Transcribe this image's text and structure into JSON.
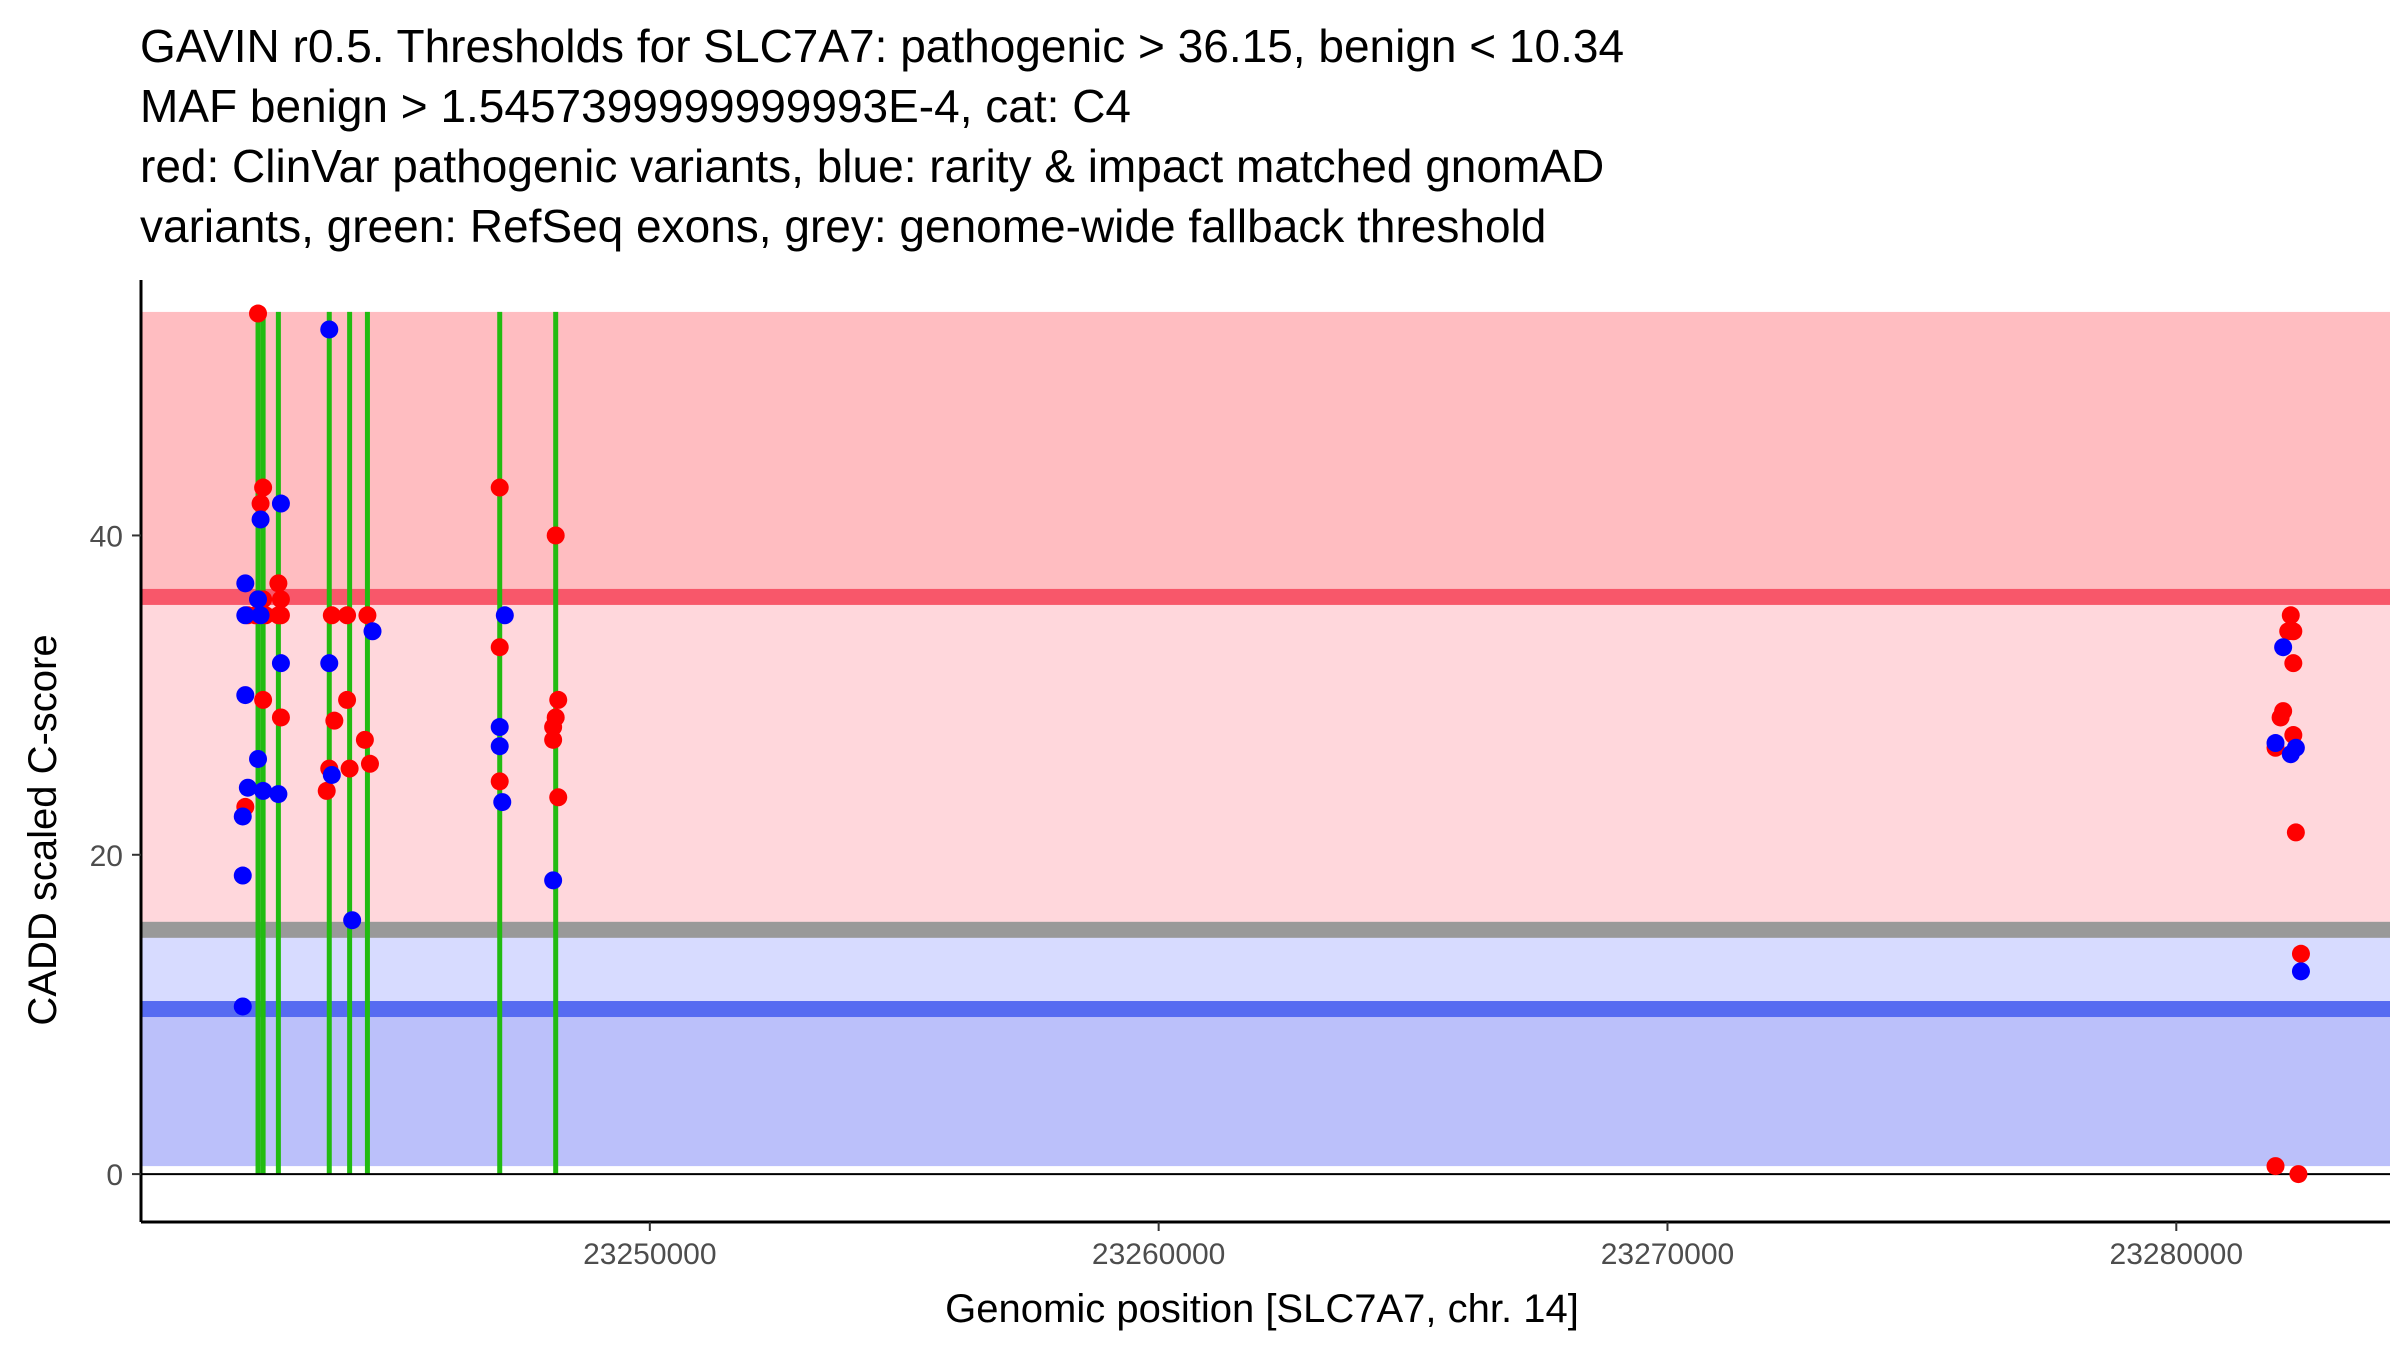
{
  "chart_data": {
    "type": "scatter",
    "title_lines": [
      "GAVIN r0.5. Thresholds for SLC7A7: pathogenic > 36.15, benign < 10.34",
      "MAF benign > 1.5457399999999993E-4, cat: C4",
      "red: ClinVar pathogenic variants, blue: rarity & impact matched gnomAD",
      "variants, green: RefSeq exons, grey: genome-wide fallback threshold"
    ],
    "xlabel": "Genomic position [SLC7A7, chr. 14]",
    "ylabel": "CADD scaled C-score",
    "xlim": [
      23240000,
      23284200
    ],
    "ylim": [
      -3,
      56
    ],
    "x_ticks": [
      23250000,
      23260000,
      23270000,
      23280000
    ],
    "x_tick_labels": [
      "23250000",
      "23260000",
      "23270000",
      "23280000"
    ],
    "y_ticks": [
      0,
      20,
      40
    ],
    "y_tick_labels": [
      "0",
      "20",
      "40"
    ],
    "thresholds": {
      "pathogenic": 36.15,
      "benign": 10.34,
      "fallback": 15.3,
      "score_max": 54,
      "score_min": 0.5
    },
    "bands": [
      {
        "name": "pathogenic-band",
        "from": 36.15,
        "to": 54,
        "color": "#ffbdc1"
      },
      {
        "name": "uncertain-upper-band",
        "from": 15.3,
        "to": 36.15,
        "color": "#ffd7dc"
      },
      {
        "name": "uncertain-lower-band",
        "from": 10.34,
        "to": 15.3,
        "color": "#d7dbff"
      },
      {
        "name": "benign-band",
        "from": 0.5,
        "to": 10.34,
        "color": "#bbc0fa"
      }
    ],
    "lines": [
      {
        "name": "pathogenic-threshold-line",
        "y": 36.15,
        "color": "#f8576a"
      },
      {
        "name": "fallback-threshold-line",
        "y": 15.3,
        "color": "#999999"
      },
      {
        "name": "benign-threshold-line",
        "y": 10.34,
        "color": "#566bf1"
      }
    ],
    "exons": [
      23242300,
      23242400,
      23242700,
      23243700,
      23244100,
      23244450,
      23247050,
      23248150
    ],
    "colors": {
      "pathogenic": "#ff0000",
      "gnomad": "#0000ff",
      "exon": "#22bb11",
      "axis": "#000000",
      "tick_text": "#4d4d4d"
    },
    "series": [
      {
        "name": "ClinVar pathogenic",
        "color": "#ff0000",
        "points": [
          [
            23242300,
            53.9
          ],
          [
            23242400,
            43.0
          ],
          [
            23242350,
            42.0
          ],
          [
            23242300,
            36.0
          ],
          [
            23242250,
            35.0
          ],
          [
            23242400,
            36.0
          ],
          [
            23242450,
            35.0
          ],
          [
            23242400,
            29.7
          ],
          [
            23242100,
            35.0
          ],
          [
            23242050,
            23.0
          ],
          [
            23242700,
            37.0
          ],
          [
            23242750,
            36.0
          ],
          [
            23242700,
            35.0
          ],
          [
            23242750,
            35.0
          ],
          [
            23242750,
            28.6
          ],
          [
            23243750,
            35.0
          ],
          [
            23243800,
            28.4
          ],
          [
            23243700,
            25.4
          ],
          [
            23243650,
            24.0
          ],
          [
            23244050,
            35.0
          ],
          [
            23244050,
            29.7
          ],
          [
            23244100,
            25.4
          ],
          [
            23244400,
            27.2
          ],
          [
            23244450,
            35.0
          ],
          [
            23244500,
            25.7
          ],
          [
            23247050,
            43.0
          ],
          [
            23247050,
            33.0
          ],
          [
            23247050,
            24.6
          ],
          [
            23248150,
            40.0
          ],
          [
            23248200,
            29.7
          ],
          [
            23248150,
            28.6
          ],
          [
            23248100,
            28.0
          ],
          [
            23248100,
            27.2
          ],
          [
            23248200,
            23.6
          ],
          [
            23282250,
            35.0
          ],
          [
            23282200,
            34.0
          ],
          [
            23282300,
            34.0
          ],
          [
            23282300,
            32.0
          ],
          [
            23282100,
            29.0
          ],
          [
            23282050,
            28.6
          ],
          [
            23282300,
            27.5
          ],
          [
            23281950,
            26.7
          ],
          [
            23282350,
            21.4
          ],
          [
            23282450,
            13.8
          ],
          [
            23281950,
            0.5
          ],
          [
            23282400,
            0.0
          ]
        ]
      },
      {
        "name": "gnomAD matched",
        "color": "#0000ff",
        "points": [
          [
            23242050,
            37.0
          ],
          [
            23242050,
            35.0
          ],
          [
            23242350,
            41.0
          ],
          [
            23242350,
            35.0
          ],
          [
            23242300,
            36.0
          ],
          [
            23242750,
            42.0
          ],
          [
            23242050,
            30.0
          ],
          [
            23242300,
            26.0
          ],
          [
            23242400,
            24.0
          ],
          [
            23242100,
            24.2
          ],
          [
            23242700,
            23.8
          ],
          [
            23242000,
            22.4
          ],
          [
            23242000,
            18.7
          ],
          [
            23242000,
            10.5
          ],
          [
            23242750,
            32.0
          ],
          [
            23243700,
            52.9
          ],
          [
            23243700,
            32.0
          ],
          [
            23243750,
            25.0
          ],
          [
            23244550,
            34.0
          ],
          [
            23244150,
            15.9
          ],
          [
            23247150,
            35.0
          ],
          [
            23247050,
            28.0
          ],
          [
            23247050,
            26.8
          ],
          [
            23247100,
            23.3
          ],
          [
            23248100,
            18.4
          ],
          [
            23282100,
            33.0
          ],
          [
            23281950,
            27.0
          ],
          [
            23282250,
            26.3
          ],
          [
            23282350,
            26.7
          ],
          [
            23282450,
            12.7
          ]
        ]
      }
    ]
  }
}
